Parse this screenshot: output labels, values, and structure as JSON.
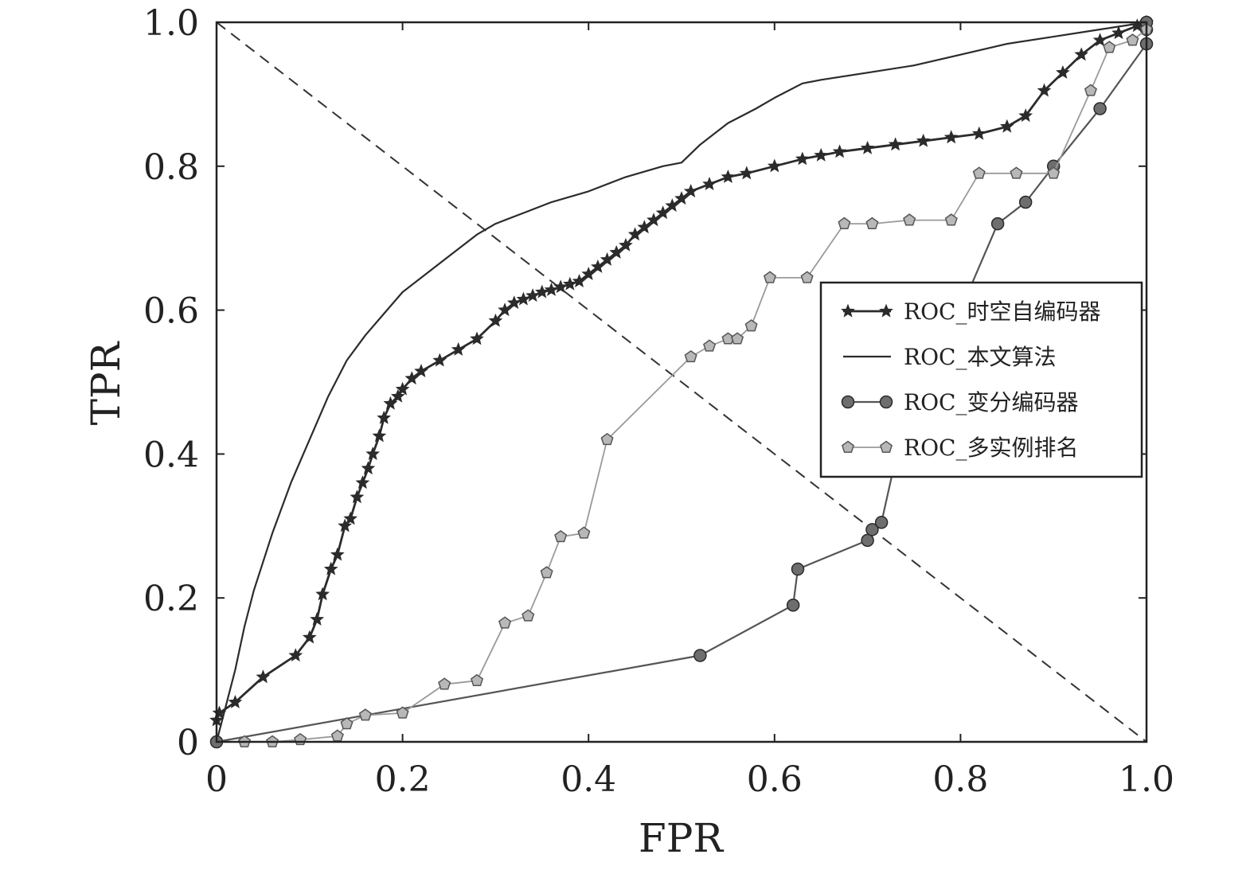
{
  "chart_data": {
    "type": "line",
    "xlabel": "FPR",
    "ylabel": "TPR",
    "xlim": [
      0,
      1
    ],
    "ylim": [
      0,
      1
    ],
    "xticks": [
      0,
      0.2,
      0.4,
      0.6,
      0.8,
      1.0
    ],
    "xtick_labels": [
      "0",
      "0.2",
      "0.4",
      "0.6",
      "0.8",
      "1.0"
    ],
    "yticks": [
      0,
      0.2,
      0.4,
      0.6,
      0.8,
      1.0
    ],
    "ytick_labels": [
      "0",
      "0.2",
      "0.4",
      "0.6",
      "0.8",
      "1.0"
    ],
    "grid": false,
    "legend_position": "right-middle",
    "reference_line": {
      "style": "dashed",
      "x": [
        0,
        1
      ],
      "y": [
        1,
        0
      ]
    },
    "series": [
      {
        "name": "ROC_时空自编码器",
        "marker": "star",
        "color": "#2b2b2b",
        "x": [
          0.0,
          0.003,
          0.02,
          0.05,
          0.085,
          0.1,
          0.108,
          0.114,
          0.123,
          0.13,
          0.138,
          0.144,
          0.151,
          0.157,
          0.163,
          0.168,
          0.175,
          0.18,
          0.187,
          0.195,
          0.2,
          0.21,
          0.22,
          0.24,
          0.26,
          0.28,
          0.3,
          0.31,
          0.32,
          0.33,
          0.34,
          0.35,
          0.36,
          0.37,
          0.38,
          0.39,
          0.4,
          0.41,
          0.42,
          0.43,
          0.44,
          0.45,
          0.46,
          0.47,
          0.48,
          0.49,
          0.5,
          0.51,
          0.53,
          0.55,
          0.57,
          0.6,
          0.63,
          0.65,
          0.67,
          0.7,
          0.73,
          0.76,
          0.79,
          0.82,
          0.85,
          0.87,
          0.89,
          0.91,
          0.93,
          0.95,
          0.97,
          0.99,
          1.0
        ],
        "y": [
          0.03,
          0.04,
          0.055,
          0.09,
          0.12,
          0.145,
          0.17,
          0.205,
          0.24,
          0.26,
          0.3,
          0.31,
          0.34,
          0.36,
          0.38,
          0.4,
          0.425,
          0.45,
          0.47,
          0.48,
          0.49,
          0.505,
          0.515,
          0.53,
          0.545,
          0.56,
          0.585,
          0.6,
          0.61,
          0.615,
          0.62,
          0.625,
          0.628,
          0.632,
          0.636,
          0.64,
          0.65,
          0.66,
          0.67,
          0.68,
          0.69,
          0.705,
          0.715,
          0.725,
          0.735,
          0.745,
          0.755,
          0.765,
          0.775,
          0.785,
          0.79,
          0.8,
          0.81,
          0.815,
          0.82,
          0.825,
          0.83,
          0.835,
          0.84,
          0.845,
          0.855,
          0.87,
          0.905,
          0.93,
          0.955,
          0.975,
          0.985,
          0.995,
          1.0
        ]
      },
      {
        "name": "ROC_本文算法",
        "marker": "none",
        "color": "#2b2b2b",
        "x": [
          0.0,
          0.01,
          0.02,
          0.03,
          0.04,
          0.06,
          0.08,
          0.1,
          0.12,
          0.14,
          0.16,
          0.18,
          0.2,
          0.22,
          0.25,
          0.28,
          0.3,
          0.33,
          0.36,
          0.4,
          0.44,
          0.48,
          0.5,
          0.52,
          0.55,
          0.58,
          0.6,
          0.63,
          0.65,
          0.7,
          0.75,
          0.8,
          0.85,
          0.9,
          0.95,
          1.0
        ],
        "y": [
          0.0,
          0.05,
          0.1,
          0.16,
          0.21,
          0.29,
          0.36,
          0.42,
          0.48,
          0.53,
          0.565,
          0.595,
          0.625,
          0.645,
          0.675,
          0.705,
          0.72,
          0.735,
          0.75,
          0.765,
          0.785,
          0.8,
          0.805,
          0.83,
          0.86,
          0.88,
          0.895,
          0.915,
          0.92,
          0.93,
          0.94,
          0.955,
          0.97,
          0.98,
          0.99,
          1.0
        ]
      },
      {
        "name": "ROC_变分编码器",
        "marker": "circle",
        "color": "#555555",
        "x": [
          0.0,
          0.52,
          0.62,
          0.625,
          0.7,
          0.705,
          0.715,
          0.74,
          0.8,
          0.84,
          0.87,
          0.9,
          0.95,
          1.0,
          1.0,
          1.0
        ],
        "y": [
          0.0,
          0.12,
          0.19,
          0.24,
          0.28,
          0.295,
          0.305,
          0.45,
          0.6,
          0.72,
          0.75,
          0.8,
          0.88,
          0.97,
          0.99,
          1.0
        ]
      },
      {
        "name": "ROC_多实例排名",
        "marker": "pentagon",
        "color": "#9a9a9a",
        "x": [
          0.03,
          0.06,
          0.09,
          0.13,
          0.14,
          0.16,
          0.2,
          0.245,
          0.28,
          0.31,
          0.335,
          0.355,
          0.37,
          0.395,
          0.42,
          0.51,
          0.53,
          0.55,
          0.56,
          0.575,
          0.595,
          0.635,
          0.675,
          0.705,
          0.745,
          0.79,
          0.82,
          0.86,
          0.9,
          0.94,
          0.96,
          0.985,
          1.0
        ],
        "y": [
          0.0,
          0.0,
          0.003,
          0.008,
          0.025,
          0.037,
          0.04,
          0.08,
          0.085,
          0.165,
          0.175,
          0.235,
          0.285,
          0.29,
          0.42,
          0.535,
          0.55,
          0.56,
          0.56,
          0.578,
          0.645,
          0.645,
          0.72,
          0.72,
          0.725,
          0.725,
          0.79,
          0.79,
          0.79,
          0.905,
          0.965,
          0.975,
          0.99
        ]
      }
    ]
  }
}
